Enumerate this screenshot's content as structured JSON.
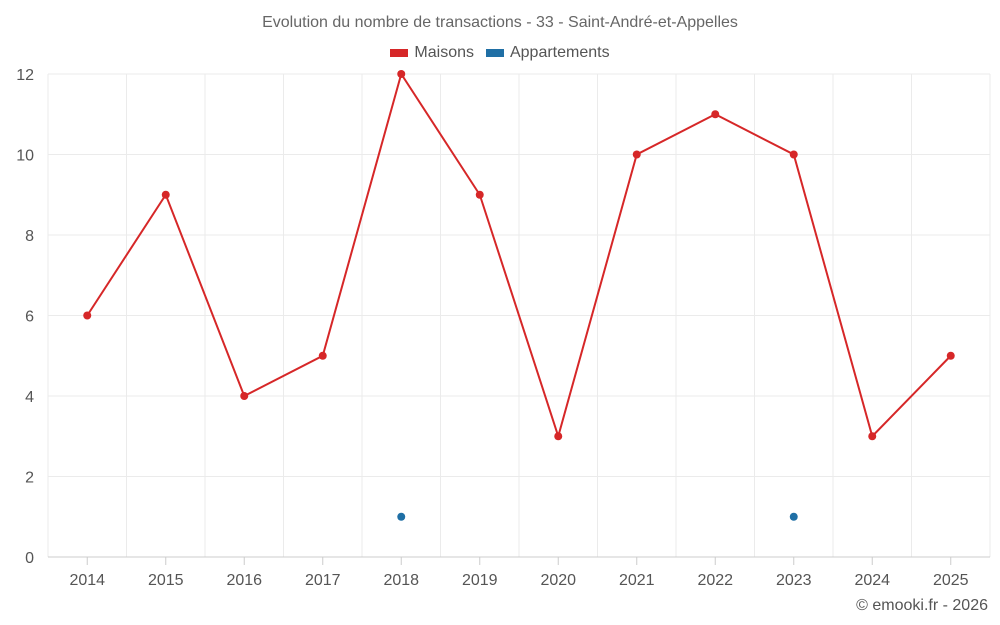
{
  "chart_data": {
    "type": "line",
    "title": "Evolution du nombre de transactions - 33 - Saint-André-et-Appelles",
    "categories": [
      "2014",
      "2015",
      "2016",
      "2017",
      "2018",
      "2019",
      "2020",
      "2021",
      "2022",
      "2023",
      "2024",
      "2025"
    ],
    "series": [
      {
        "name": "Maisons",
        "color": "#d62728",
        "values": [
          6,
          9,
          4,
          5,
          12,
          9,
          3,
          10,
          11,
          10,
          3,
          5
        ]
      },
      {
        "name": "Appartements",
        "color": "#1f6fa5",
        "values": [
          null,
          null,
          null,
          null,
          1,
          null,
          null,
          null,
          null,
          1,
          null,
          null
        ]
      }
    ],
    "ylim": [
      0,
      12
    ],
    "yticks": [
      0,
      2,
      4,
      6,
      8,
      10,
      12
    ],
    "grid": true,
    "legend_position": "top-center"
  },
  "credit": "© emooki.fr - 2026"
}
